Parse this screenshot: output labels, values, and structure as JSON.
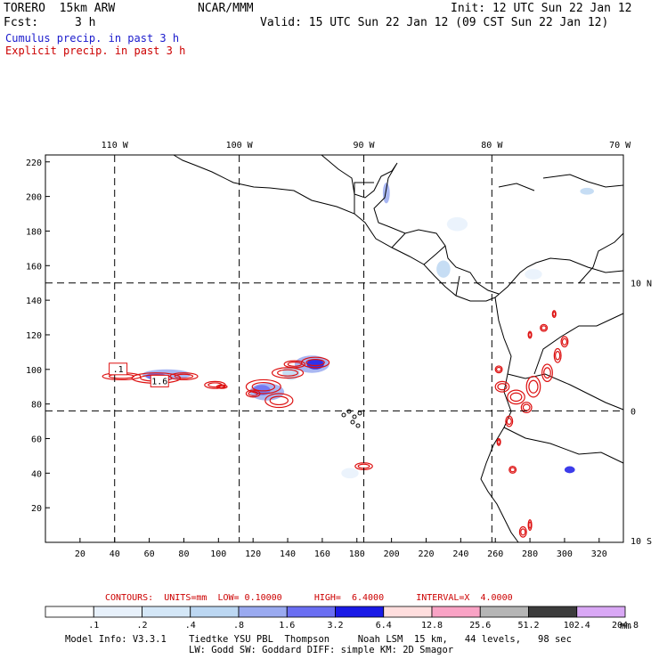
{
  "header": {
    "model": "TORERO  15km ARW",
    "org": "NCAR/MMM",
    "init": "Init: 12 UTC Sun 22 Jan 12",
    "fcst_label": "Fcst:",
    "fcst_value": "3 h",
    "valid": "Valid: 15 UTC Sun 22 Jan 12 (09 CST Sun 22 Jan 12)",
    "cumulus": "Cumulus precip. in past 3 h",
    "explicit": "Explicit precip. in past 3 h"
  },
  "colors": {
    "cumulus_text": "#1a1acc",
    "explicit_text": "#cc0000",
    "contour": "#dd1111"
  },
  "top_lon_labels": [
    {
      "text": "110 W",
      "col": 40
    },
    {
      "text": "100 W",
      "col": 112
    },
    {
      "text": "90 W",
      "col": 184
    },
    {
      "text": "80 W",
      "col": 258
    },
    {
      "text": "70 W",
      "col": 332
    }
  ],
  "right_lat_labels": [
    {
      "text": "10 N",
      "row": 150
    },
    {
      "text": "0",
      "row": 76
    },
    {
      "text": "10 S",
      "row": 1
    }
  ],
  "axes": {
    "x_ticks": [
      20,
      40,
      60,
      80,
      100,
      120,
      140,
      160,
      180,
      200,
      220,
      240,
      260,
      280,
      300,
      320
    ],
    "y_ticks": [
      20,
      40,
      60,
      80,
      100,
      120,
      140,
      160,
      180,
      200,
      220
    ],
    "xlim": [
      0,
      334
    ],
    "ylim": [
      0,
      224
    ]
  },
  "contour_labels": [
    {
      "text": ".1",
      "col": 42,
      "row": 100
    },
    {
      "text": "1.6",
      "col": 66,
      "row": 93
    }
  ],
  "contour_info": {
    "label": "CONTOURS:",
    "units": "UNITS=mm",
    "low": "LOW= 0.10000",
    "high": "HIGH=  6.4000",
    "interval": "INTERVAL=X  4.0000"
  },
  "colorbar": {
    "levels": [
      ".1",
      ".2",
      ".4",
      ".8",
      "1.6",
      "3.2",
      "6.4",
      "12.8",
      "25.6",
      "51.2",
      "102.4",
      "204.8"
    ],
    "colors": [
      "#ffffff",
      "#e8f1fb",
      "#d4e7f7",
      "#bcd7f2",
      "#9aaaf0",
      "#6a6ef2",
      "#1a1ae6",
      "#ffdede",
      "#f9a3c5",
      "#b5b5b5",
      "#3c3c3c",
      "#d9a8f5"
    ],
    "units": "mm"
  },
  "footer": {
    "line1": "Model Info: V3.3.1    Tiedtke YSU PBL  Thompson     Noah LSM  15 km,   44 levels,   98 sec",
    "line2": "LW: Godd SW: Goddard DIFF: simple KM: 2D Smagor"
  }
}
